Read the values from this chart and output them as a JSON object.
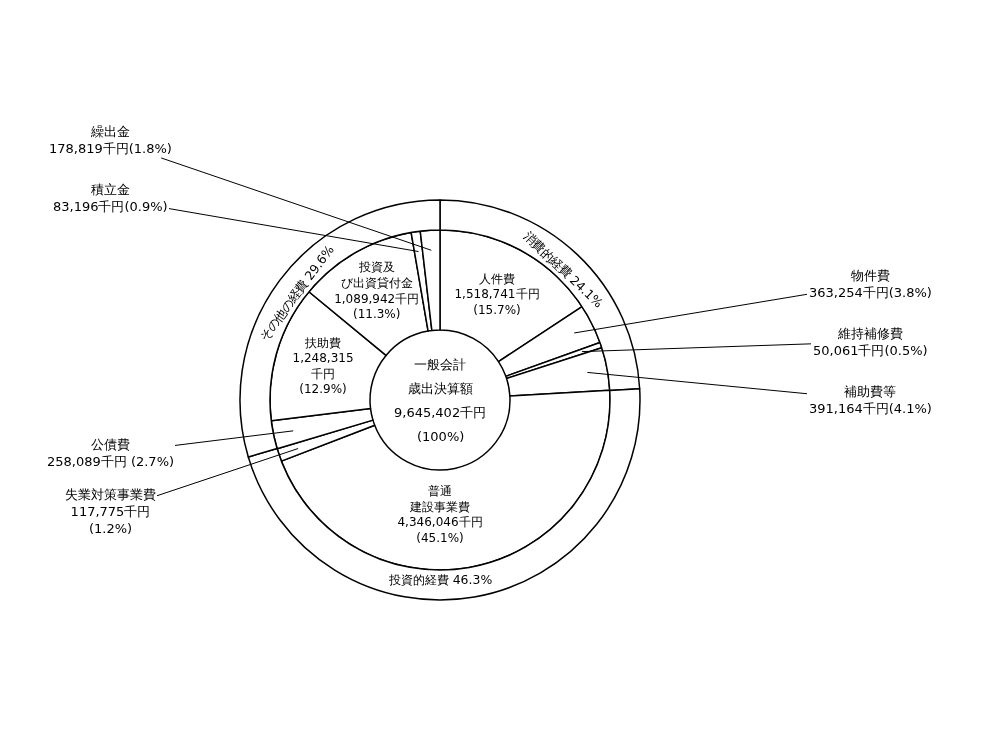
{
  "chart_data": {
    "type": "donut",
    "annotations": [
      "一般会計",
      "歳出決算額",
      "9,645,402千円",
      "(100%)"
    ],
    "categories": [
      "人件費",
      "物件費",
      "維持補修費",
      "補助費等",
      "普通建設事業費",
      "失業対策事業費",
      "公債費",
      "扶助費",
      "投資及び出資貸付金",
      "積立金",
      "繰出金",
      "消費的経費",
      "投資的経費",
      "その他の経費"
    ],
    "series": [
      {
        "values": [
          1518741,
          363254,
          50061,
          391164,
          4346046,
          117775,
          258089,
          1248315,
          1089942,
          83196,
          178819,
          null,
          null,
          null
        ],
        "value_labels": [
          "1,518,741千円\n(15.7%)",
          "363,254千円(3.8%)",
          "50,061千円(0.5%)",
          "391,164千円(4.1%)",
          "4,346,046千円\n(45.1%)",
          "117,775千円\n(1.2%)",
          "258,089千円 (2.7%)",
          "1,248,315\n千円\n(12.9%)",
          "1,089,942千円\n(11.3%)",
          "83,196千円(0.9%)",
          "178,819千円(1.8%)",
          null,
          null,
          null
        ],
        "colors": [
          "#ffffff",
          "#ffffff",
          "#ffffff",
          "#ffffff",
          "#ffffff",
          "#ffffff",
          "#ffffff",
          "#ffffff",
          "#ffffff",
          "#ffffff",
          "#ffffff",
          null,
          null,
          null
        ]
      },
      {
        "values": [
          null,
          null,
          null,
          null,
          null,
          null,
          null,
          null,
          null,
          null,
          null,
          24.1,
          46.3,
          29.6
        ],
        "value_labels": [
          null,
          null,
          null,
          null,
          null,
          null,
          null,
          null,
          null,
          null,
          null,
          "24.1%",
          "46.3%",
          "29.6%"
        ],
        "colors": [
          null,
          null,
          null,
          null,
          null,
          null,
          null,
          null,
          null,
          null,
          null,
          "#ffffff",
          "#ffffff",
          "#ffffff"
        ]
      }
    ]
  }
}
